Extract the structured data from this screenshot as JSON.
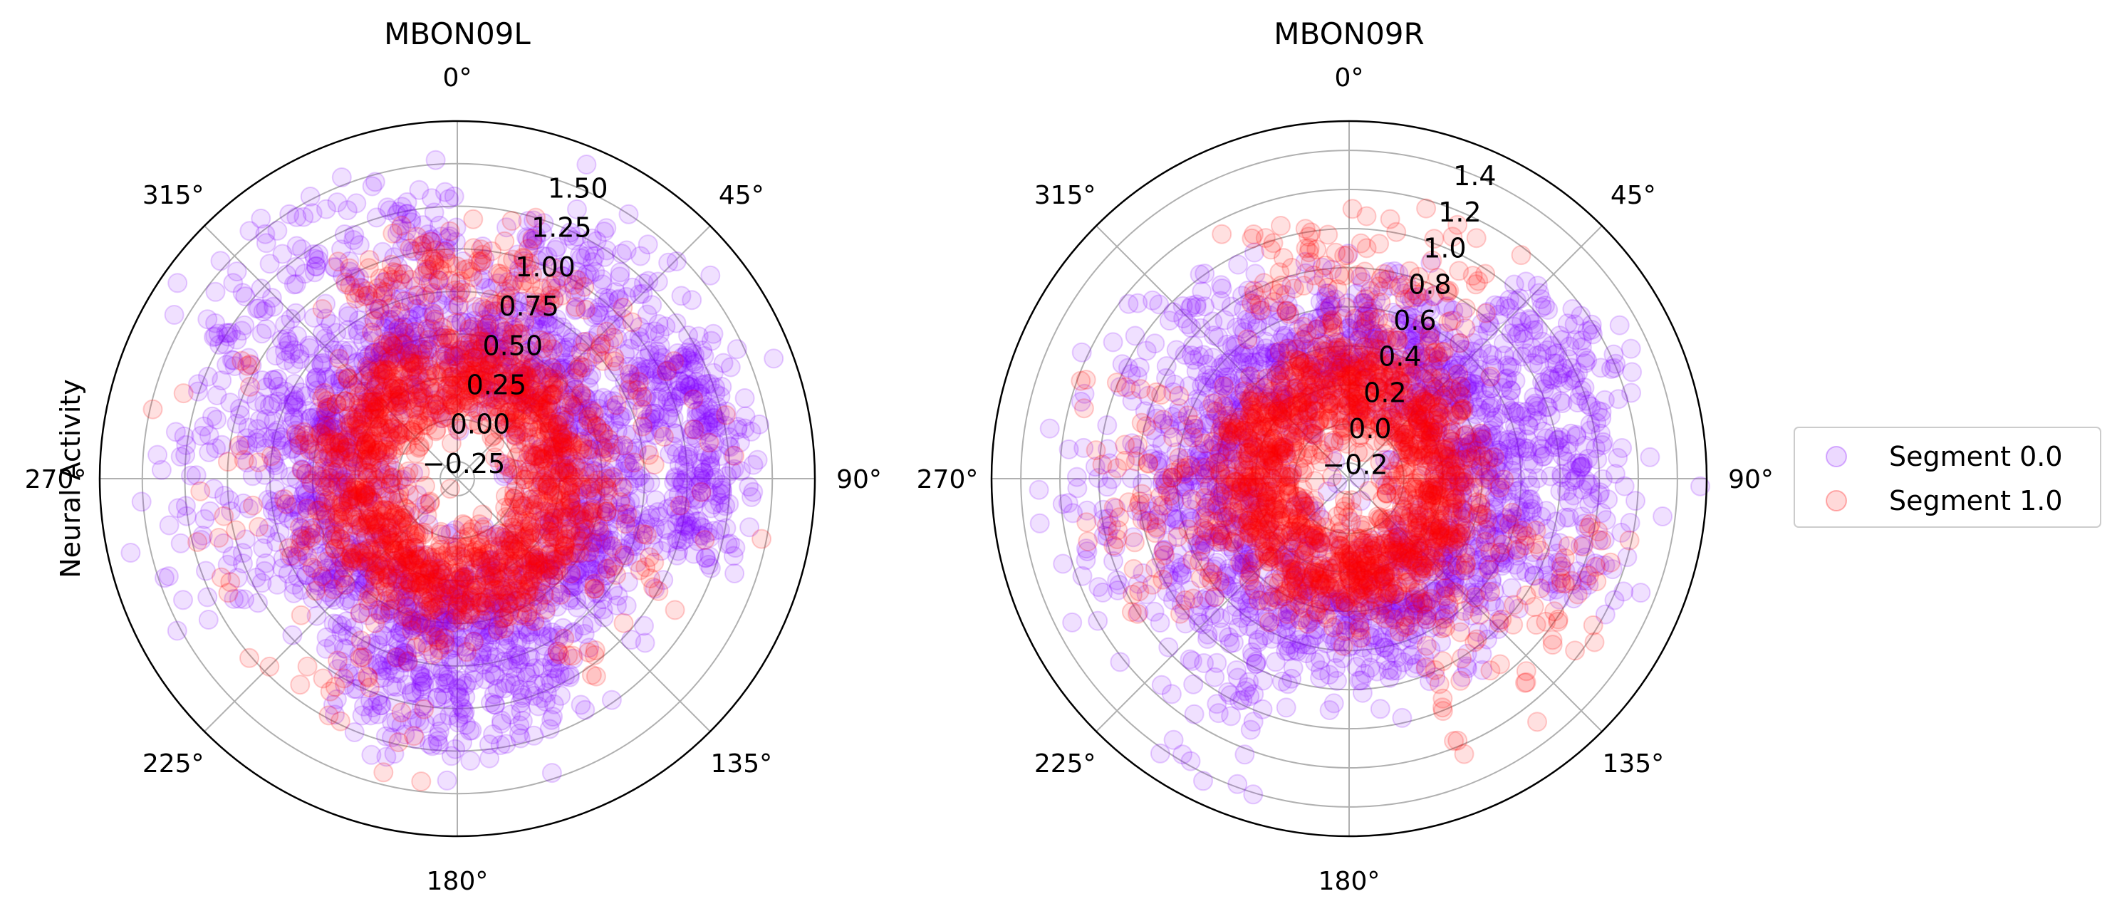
{
  "chart_data": [
    {
      "type": "scatter",
      "projection": "polar",
      "title": "MBON09L",
      "ylabel": "Neural Activity",
      "theta_direction": "clockwise",
      "theta_zero_location": "top",
      "theta_tick_labels": [
        "0°",
        "45°",
        "90°",
        "135°",
        "180°",
        "225°",
        "270°",
        "315°"
      ],
      "rlim": [
        -0.35,
        1.75
      ],
      "r_ticks": [
        -0.25,
        0.0,
        0.25,
        0.5,
        0.75,
        1.0,
        1.25,
        1.5
      ],
      "r_tick_labels": [
        "−0.25",
        "0.00",
        "0.25",
        "0.50",
        "0.75",
        "1.00",
        "1.25",
        "1.50"
      ],
      "grid": true,
      "marker_alpha": 0.12,
      "series": [
        {
          "name": "Segment 0.0",
          "color": "#8000ff",
          "clusters": [
            {
              "theta": [
                0,
                360
              ],
              "r_mean": 0.5,
              "r_sd": 0.22,
              "count": 1600
            },
            {
              "theta": [
                15,
                75
              ],
              "r_mean": 1.05,
              "r_sd": 0.18,
              "count": 180
            },
            {
              "theta": [
                60,
                110
              ],
              "r_mean": 1.1,
              "r_sd": 0.15,
              "count": 220
            },
            {
              "theta": [
                150,
                210
              ],
              "r_mean": 0.95,
              "r_sd": 0.2,
              "count": 200
            },
            {
              "theta": [
                300,
                360
              ],
              "r_mean": 1.2,
              "r_sd": 0.22,
              "count": 140
            },
            {
              "theta": [
                240,
                300
              ],
              "r_mean": 1.1,
              "r_sd": 0.25,
              "count": 90
            }
          ]
        },
        {
          "name": "Segment 1.0",
          "color": "#ff0000",
          "clusters": [
            {
              "theta": [
                0,
                360
              ],
              "r_mean": 0.28,
              "r_sd": 0.15,
              "count": 1400
            },
            {
              "theta": [
                330,
                30
              ],
              "r_mean": 0.9,
              "r_sd": 0.12,
              "count": 120
            },
            {
              "theta": [
                30,
                150
              ],
              "r_mean": 0.8,
              "r_sd": 0.25,
              "count": 90
            },
            {
              "theta": [
                180,
                300
              ],
              "r_mean": 0.85,
              "r_sd": 0.25,
              "count": 70
            }
          ]
        }
      ]
    },
    {
      "type": "scatter",
      "projection": "polar",
      "title": "MBON09R",
      "ylabel": "",
      "theta_direction": "clockwise",
      "theta_zero_location": "top",
      "theta_tick_labels": [
        "0°",
        "45°",
        "90°",
        "135°",
        "180°",
        "225°",
        "270°",
        "315°"
      ],
      "rlim": [
        -0.28,
        1.55
      ],
      "r_ticks": [
        -0.2,
        0.0,
        0.2,
        0.4,
        0.6,
        0.8,
        1.0,
        1.2,
        1.4
      ],
      "r_tick_labels": [
        "−0.2",
        "0.0",
        "0.2",
        "0.4",
        "0.6",
        "0.8",
        "1.0",
        "1.2",
        "1.4"
      ],
      "grid": true,
      "marker_alpha": 0.12,
      "series": [
        {
          "name": "Segment 0.0",
          "color": "#8000ff",
          "clusters": [
            {
              "theta": [
                0,
                360
              ],
              "r_mean": 0.45,
              "r_sd": 0.2,
              "count": 1600
            },
            {
              "theta": [
                40,
                120
              ],
              "r_mean": 0.95,
              "r_sd": 0.15,
              "count": 220
            },
            {
              "theta": [
                200,
                330
              ],
              "r_mean": 0.9,
              "r_sd": 0.2,
              "count": 160
            },
            {
              "theta": [
                195,
                215
              ],
              "r_mean": 1.4,
              "r_sd": 0.06,
              "count": 8
            }
          ]
        },
        {
          "name": "Segment 1.0",
          "color": "#ff0000",
          "clusters": [
            {
              "theta": [
                0,
                360
              ],
              "r_mean": 0.22,
              "r_sd": 0.14,
              "count": 1400
            },
            {
              "theta": [
                330,
                40
              ],
              "r_mean": 0.75,
              "r_sd": 0.2,
              "count": 120
            },
            {
              "theta": [
                100,
                160
              ],
              "r_mean": 0.85,
              "r_sd": 0.18,
              "count": 80
            },
            {
              "theta": [
                230,
                300
              ],
              "r_mean": 0.75,
              "r_sd": 0.2,
              "count": 80
            }
          ]
        }
      ]
    }
  ],
  "legend": {
    "placement": "right",
    "entries": [
      {
        "label": "Segment 0.0",
        "color": "#8000ff"
      },
      {
        "label": "Segment 1.0",
        "color": "#ff0000"
      }
    ]
  }
}
